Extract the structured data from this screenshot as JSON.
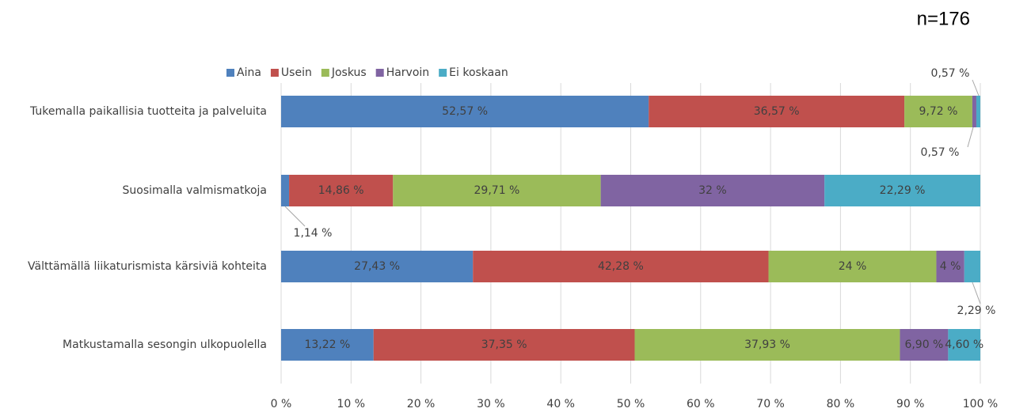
{
  "chart_data": {
    "type": "stacked-bar-horizontal",
    "annotation": "n=176",
    "categories": [
      "Tukemalla paikallisia tuotteita ja palveluita",
      "Suosimalla valmismatkoja",
      "Välttämällä liikaturismista kärsiviä kohteita",
      "Matkustamalla sesongin ulkopuolella"
    ],
    "series": [
      {
        "name": "Aina",
        "color": "#4f81bd",
        "values": [
          52.57,
          1.14,
          27.43,
          13.22
        ],
        "value_labels": [
          "52,57 %",
          "1,14 %",
          "27,43 %",
          "13,22 %"
        ]
      },
      {
        "name": "Usein",
        "color": "#c0504d",
        "values": [
          36.57,
          14.86,
          42.28,
          37.35
        ],
        "value_labels": [
          "36,57 %",
          "14,86 %",
          "42,28 %",
          "37,35 %"
        ]
      },
      {
        "name": "Joskus",
        "color": "#9bbb59",
        "values": [
          9.72,
          29.71,
          24,
          37.93
        ],
        "value_labels": [
          "9,72 %",
          "29,71 %",
          "24 %",
          "37,93 %"
        ]
      },
      {
        "name": "Harvoin",
        "color": "#8064a2",
        "values": [
          0.57,
          32,
          4,
          6.9
        ],
        "value_labels": [
          "0,57 %",
          "32 %",
          "4 %",
          "6,90 %"
        ]
      },
      {
        "name": "Ei koskaan",
        "color": "#4bacc6",
        "values": [
          0.57,
          22.29,
          2.29,
          4.6
        ],
        "value_labels": [
          "0,57 %",
          "22,29 %",
          "2,29 %",
          "4,60 %"
        ]
      }
    ],
    "xlim": [
      0,
      100
    ],
    "xticks": [
      {
        "value": 0,
        "label": "0 %"
      },
      {
        "value": 10,
        "label": "10 %"
      },
      {
        "value": 20,
        "label": "20 %"
      },
      {
        "value": 30,
        "label": "30 %"
      },
      {
        "value": 40,
        "label": "40 %"
      },
      {
        "value": 50,
        "label": "50 %"
      },
      {
        "value": 60,
        "label": "60 %"
      },
      {
        "value": 70,
        "label": "70 %"
      },
      {
        "value": 80,
        "label": "80 %"
      },
      {
        "value": 90,
        "label": "90 %"
      },
      {
        "value": 100,
        "label": "100 %"
      }
    ],
    "grid": true,
    "legend": "top"
  }
}
